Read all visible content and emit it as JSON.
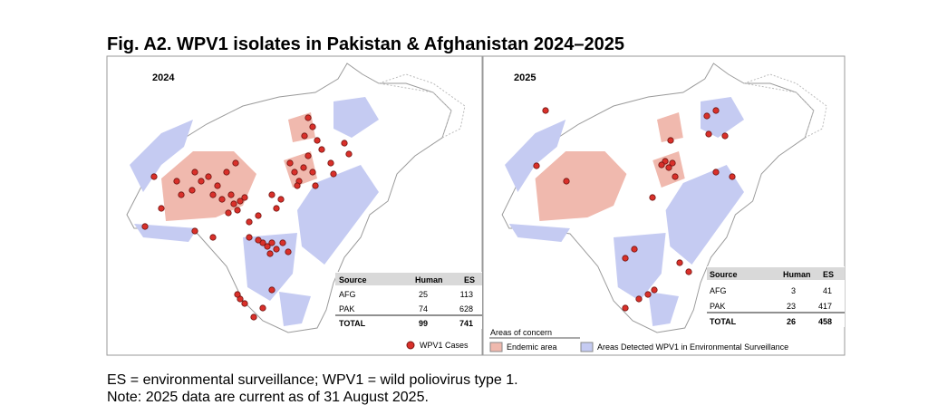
{
  "title": "Fig. A2. WPV1 isolates in Pakistan & Afghanistan 2024–2025",
  "panels": [
    {
      "label": "2024",
      "table": {
        "header": [
          "Source",
          "Human",
          "ES"
        ],
        "rows": [
          [
            "AFG",
            25,
            113
          ],
          [
            "PAK",
            74,
            628
          ],
          [
            "TOTAL",
            99,
            741
          ]
        ]
      }
    },
    {
      "label": "2025",
      "table": {
        "header": [
          "Source",
          "Human",
          "ES"
        ],
        "rows": [
          [
            "AFG",
            3,
            41
          ],
          [
            "PAK",
            23,
            417
          ],
          [
            "TOTAL",
            26,
            458
          ]
        ]
      }
    }
  ],
  "legend": {
    "cases": "WPV1 Cases",
    "areas_title": "Areas of concern",
    "endemic": "Endemic area",
    "surveillance": "Areas Detected WPV1 in Environmental Surveillance"
  },
  "notes": [
    "ES = environmental surveillance; WPV1 = wild poliovirus type 1.",
    "Note: 2025 data are current as of 31 August 2025."
  ]
}
